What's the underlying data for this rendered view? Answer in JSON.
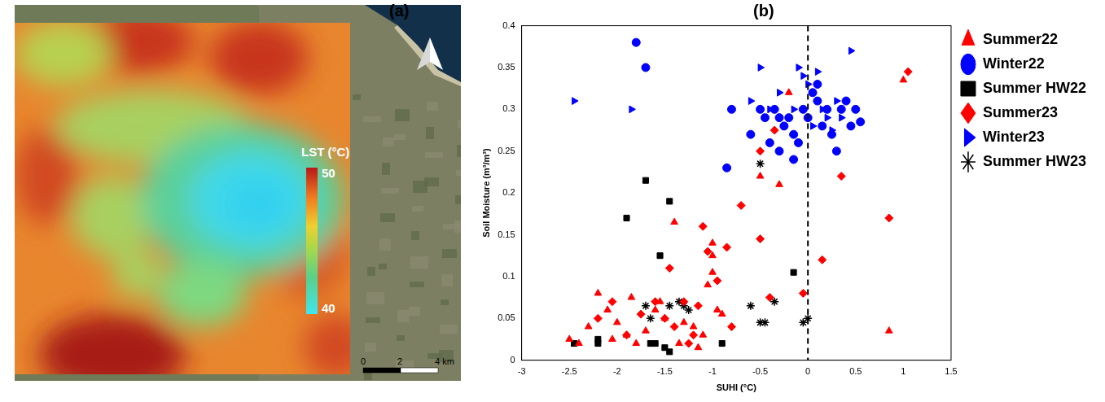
{
  "panel_labels": [
    "(a)",
    "(b)"
  ],
  "map": {
    "colorbar": {
      "title": "LST (°C)",
      "range": [
        40,
        50
      ],
      "ticks": [
        40,
        50
      ]
    },
    "scale_bar": {
      "ticks": [
        {
          "value": 0,
          "label": "0"
        },
        {
          "value": 2,
          "label": "2"
        },
        {
          "value": 4,
          "label": "4 km"
        }
      ]
    }
  },
  "chart_data": {
    "type": "scatter",
    "x_label": "SUHI (°C)",
    "y_label": "Soil Moisture (m³/m³)",
    "xlim": [
      -3,
      1.5
    ],
    "xticks": [
      -3,
      -2.5,
      -2,
      -1.5,
      -1,
      -0.5,
      0,
      0.5,
      1,
      1.5
    ],
    "ylim": [
      0,
      0.4
    ],
    "yticks": [
      0,
      0.05,
      0.1,
      0.15,
      0.2,
      0.25,
      0.3,
      0.35,
      0.4
    ],
    "grid": false,
    "legend": "right",
    "vline": {
      "x": 0,
      "line_style": "dashed",
      "color": "#000000"
    },
    "series": [
      {
        "name": "Summer22",
        "color": "#ff0000",
        "marker": "triangle",
        "x": [
          -2.5,
          -2.4,
          -2.3,
          -2.2,
          -2.1,
          -2.0,
          -1.9,
          -1.8,
          -1.7,
          -1.6,
          -1.55,
          -1.5,
          -1.4,
          -1.3,
          -1.2,
          -1.15,
          -1.1,
          -1.0,
          -1.0,
          -1.0,
          -0.95,
          -0.9,
          -0.5,
          -0.3,
          -0.2,
          0.85,
          1.0,
          -1.85,
          -2.05,
          -1.35,
          -1.05
        ],
        "values": [
          0.025,
          0.02,
          0.04,
          0.08,
          0.06,
          0.045,
          0.03,
          0.02,
          0.035,
          0.06,
          0.07,
          0.05,
          0.165,
          0.045,
          0.04,
          0.015,
          0.03,
          0.125,
          0.14,
          0.105,
          0.06,
          0.055,
          0.22,
          0.21,
          0.32,
          0.035,
          0.335,
          0.075,
          0.025,
          0.02,
          0.09
        ]
      },
      {
        "name": "Winter22",
        "color": "#0000ff",
        "marker": "circle",
        "x": [
          -1.8,
          -1.7,
          -0.85,
          -0.8,
          -0.6,
          -0.5,
          -0.45,
          -0.4,
          -0.35,
          -0.3,
          -0.25,
          -0.2,
          -0.15,
          -0.1,
          -0.05,
          0,
          0.05,
          0.1,
          0.15,
          0.2,
          0.25,
          0.3,
          0.35,
          0.4,
          0.45,
          0.55,
          0.5,
          -0.3,
          0.1,
          -0.15
        ],
        "values": [
          0.38,
          0.35,
          0.23,
          0.3,
          0.27,
          0.3,
          0.29,
          0.26,
          0.3,
          0.25,
          0.28,
          0.29,
          0.27,
          0.26,
          0.3,
          0.29,
          0.32,
          0.31,
          0.28,
          0.3,
          0.27,
          0.25,
          0.3,
          0.31,
          0.28,
          0.285,
          0.3,
          0.29,
          0.33,
          0.24
        ]
      },
      {
        "name": "Summer HW22",
        "color": "#000000",
        "marker": "square",
        "x": [
          -2.45,
          -2.2,
          -2.2,
          -1.9,
          -1.7,
          -1.65,
          -1.6,
          -1.55,
          -1.5,
          -1.45,
          -1.45,
          -0.9,
          -0.15
        ],
        "values": [
          0.02,
          0.02,
          0.025,
          0.17,
          0.215,
          0.02,
          0.02,
          0.125,
          0.015,
          0.01,
          0.19,
          0.02,
          0.105
        ]
      },
      {
        "name": "Summer23",
        "color": "#ff0000",
        "marker": "diamond",
        "x": [
          -2.05,
          -1.9,
          -1.75,
          -1.6,
          -1.5,
          -1.45,
          -1.4,
          -1.3,
          -1.25,
          -1.15,
          -1.1,
          -1.05,
          -0.95,
          -0.85,
          -0.8,
          -0.7,
          -0.5,
          -0.5,
          -0.4,
          -0.35,
          -0.05,
          0.15,
          0.35,
          0.85,
          1.05,
          -2.2,
          -1.2
        ],
        "values": [
          0.07,
          0.03,
          0.055,
          0.07,
          0.05,
          0.11,
          0.04,
          0.07,
          0.02,
          0.065,
          0.16,
          0.13,
          0.095,
          0.135,
          0.04,
          0.185,
          0.145,
          0.25,
          0.075,
          0.275,
          0.08,
          0.12,
          0.22,
          0.17,
          0.345,
          0.05,
          0.03
        ]
      },
      {
        "name": "Winter23",
        "color": "#0000ff",
        "marker": "triangle-right",
        "x": [
          -2.45,
          -1.85,
          -0.5,
          -0.6,
          -0.4,
          -0.25,
          -0.1,
          -0.05,
          0,
          0.05,
          0.1,
          0.15,
          0.2,
          0.25,
          0.3,
          0.35,
          0.45,
          -0.3,
          0.05,
          -0.15
        ],
        "values": [
          0.31,
          0.3,
          0.35,
          0.31,
          0.3,
          0.28,
          0.35,
          0.34,
          0.33,
          0.32,
          0.345,
          0.3,
          0.29,
          0.275,
          0.31,
          0.29,
          0.37,
          0.32,
          0.28,
          0.3
        ]
      },
      {
        "name": "Summer HW23",
        "color": "#000000",
        "marker": "star",
        "x": [
          -1.7,
          -1.65,
          -1.45,
          -1.3,
          -1.25,
          -0.6,
          -0.5,
          -0.45,
          -0.35,
          -0.5,
          -0.05,
          0,
          -1.35
        ],
        "values": [
          0.065,
          0.05,
          0.065,
          0.065,
          0.06,
          0.065,
          0.045,
          0.045,
          0.07,
          0.235,
          0.045,
          0.05,
          0.07
        ]
      }
    ]
  }
}
